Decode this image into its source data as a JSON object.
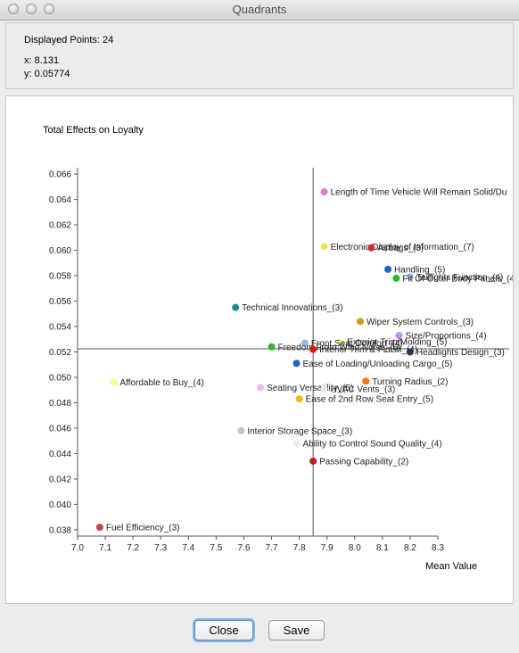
{
  "window": {
    "title": "Quadrants"
  },
  "info": {
    "displayed_points": "Displayed Points: 24",
    "x_readout": "x: 8.131",
    "y_readout": "y: 0.05774"
  },
  "buttons": {
    "close_label": "Close",
    "save_label": "Save"
  },
  "chart_data": {
    "type": "scatter",
    "title": "",
    "xlabel": "Mean Value",
    "ylabel": "Total Effects on Loyalty",
    "xlim": [
      7.0,
      8.3
    ],
    "ylim": [
      0.0375,
      0.0665
    ],
    "x_ticks": [
      "7.0",
      "7.1",
      "7.2",
      "7.3",
      "7.4",
      "7.5",
      "7.6",
      "7.7",
      "7.8",
      "7.9",
      "8.0",
      "8.1",
      "8.2",
      "8.3"
    ],
    "y_ticks": [
      "0.038",
      "0.040",
      "0.042",
      "0.044",
      "0.046",
      "0.048",
      "0.050",
      "0.052",
      "0.054",
      "0.056",
      "0.058",
      "0.060",
      "0.062",
      "0.064",
      "0.066"
    ],
    "quadrant_lines": {
      "x": 7.85,
      "y": 0.05225
    },
    "grid": false,
    "points": [
      {
        "label": "Length of Time Vehicle Will Remain Solid/Du",
        "x": 7.89,
        "y": 0.0646,
        "color": "#e07cc8"
      },
      {
        "label": "Electronic Display of Information_(7)",
        "x": 7.89,
        "y": 0.0603,
        "color": "#e8e85a"
      },
      {
        "label": "Airbags_(3)",
        "x": 8.06,
        "y": 0.0602,
        "color": "#cc2b2b"
      },
      {
        "label": "Handling_(5)",
        "x": 8.12,
        "y": 0.0585,
        "color": "#1b64c8"
      },
      {
        "label": "Taillights Function_(4)",
        "x": 8.2,
        "y": 0.0579,
        "color": "#a0b8e8"
      },
      {
        "label": "Fit Of Outer Body Panels_(4)",
        "x": 8.15,
        "y": 0.0578,
        "color": "#2cb82c"
      },
      {
        "label": "Technical Innovations_(3)",
        "x": 7.57,
        "y": 0.0555,
        "color": "#1a8c8c"
      },
      {
        "label": "Size/Proportions_(4)",
        "x": 8.16,
        "y": 0.0533,
        "color": "#c88ce8"
      },
      {
        "label": "Wiper System Controls_(3)",
        "x": 8.02,
        "y": 0.0544,
        "color": "#c89c14"
      },
      {
        "label": "Exterior Trim/Molding_(5)",
        "x": 7.95,
        "y": 0.0528,
        "color": "#f8f89c"
      },
      {
        "label": "Front Seat Comfort_(4)",
        "x": 7.82,
        "y": 0.0527,
        "color": "#90bce0"
      },
      {
        "label": "Freedom From Wind Noise_(6)",
        "x": 7.7,
        "y": 0.0524,
        "color": "#2cb82c"
      },
      {
        "label": "Interior Trim & Finish_(4)",
        "x": 7.85,
        "y": 0.0522,
        "color": "#d81818"
      },
      {
        "label": "Headlights Design_(3)",
        "x": 8.2,
        "y": 0.052,
        "color": "#2c3450"
      },
      {
        "label": "Ease of Loading/Unloading Cargo_(5)",
        "x": 7.79,
        "y": 0.0511,
        "color": "#1b64c8"
      },
      {
        "label": "Affordable to Buy_(4)",
        "x": 7.13,
        "y": 0.0496,
        "color": "#f8f89c"
      },
      {
        "label": "Turning Radius_(2)",
        "x": 8.04,
        "y": 0.0497,
        "color": "#f07818"
      },
      {
        "label": "Seating Versatility_(5)",
        "x": 7.66,
        "y": 0.0492,
        "color": "#f4b8e8"
      },
      {
        "label": "HVAC Vents_(3)",
        "x": 7.89,
        "y": 0.0491,
        "color": "#e8e8f0"
      },
      {
        "label": "Ease of 2nd Row Seat Entry_(5)",
        "x": 7.8,
        "y": 0.0483,
        "color": "#f0b818"
      },
      {
        "label": "Interior Storage Space_(3)",
        "x": 7.59,
        "y": 0.0458,
        "color": "#c4c4c4"
      },
      {
        "label": "Ability to Control Sound Quality_(4)",
        "x": 7.79,
        "y": 0.0448,
        "color": "#ececec"
      },
      {
        "label": "Passing Capability_(2)",
        "x": 7.85,
        "y": 0.0434,
        "color": "#b02424"
      },
      {
        "label": "Fuel Efficiency_(3)",
        "x": 7.08,
        "y": 0.0382,
        "color": "#cc4848"
      }
    ]
  }
}
